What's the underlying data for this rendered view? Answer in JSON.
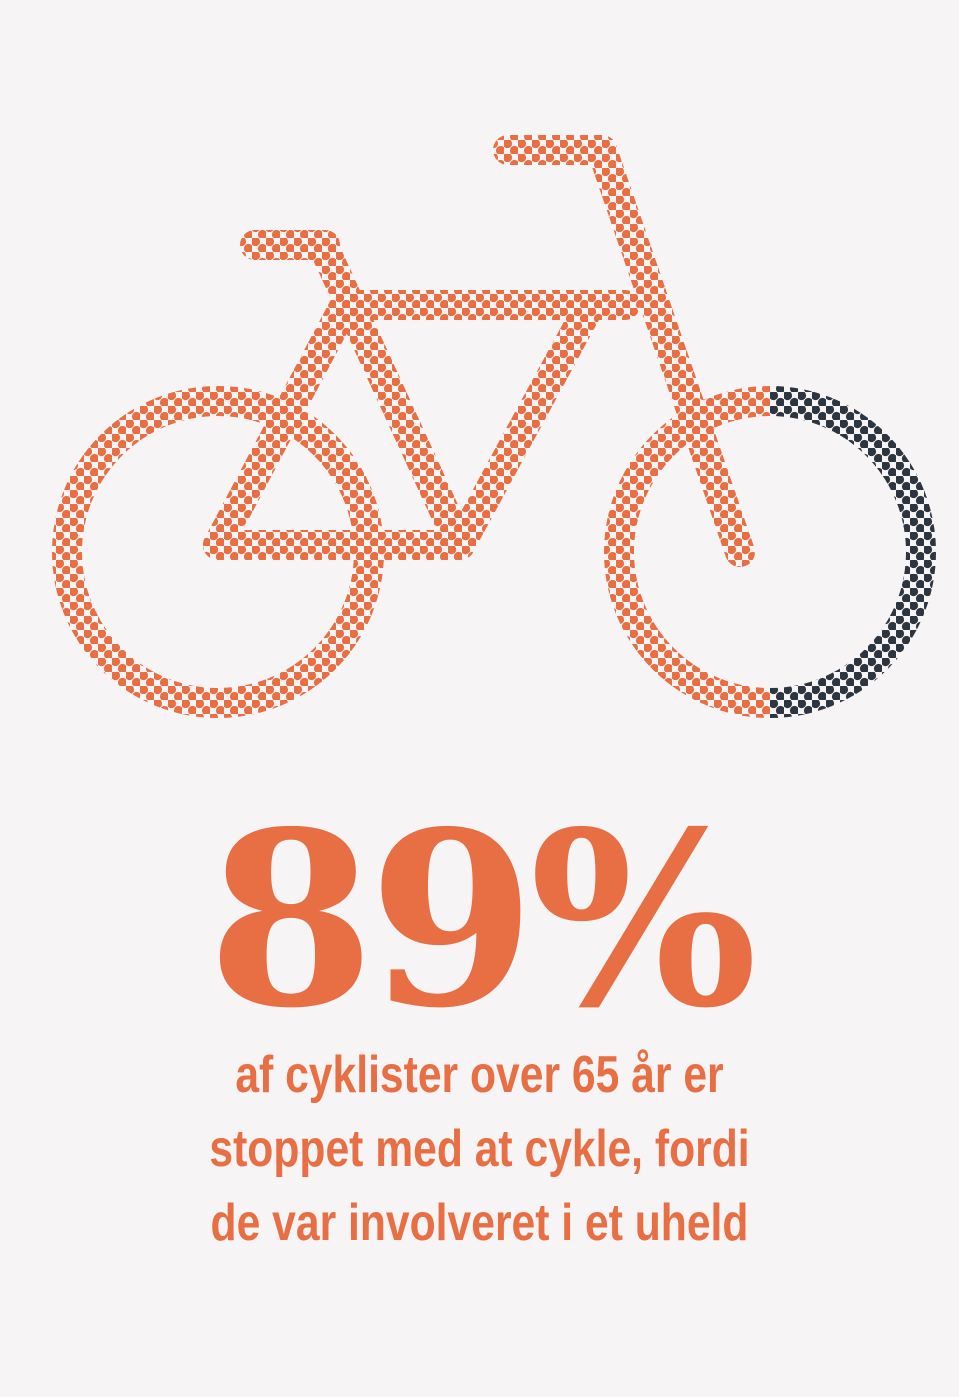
{
  "infographic": {
    "icon": "bicycle-icon",
    "statistic": "89%",
    "statistic_fraction": 0.89,
    "caption_lines": [
      "af cyklister over 65 år er",
      "stoppet med at cykle, fordi",
      "de var involveret i et uheld"
    ]
  },
  "colors": {
    "background": "#f7f4f5",
    "accent": "#e86e44",
    "remainder": "#2d3540"
  }
}
